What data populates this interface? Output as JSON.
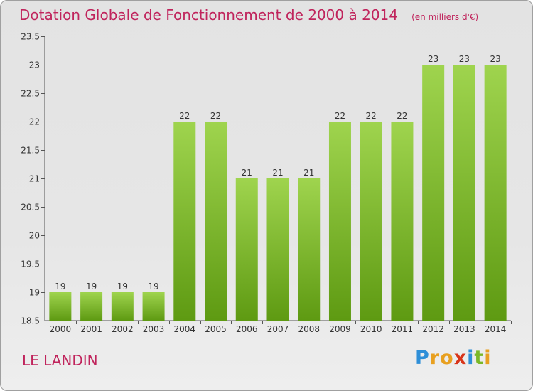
{
  "header": {
    "title": "Dotation Globale de Fonctionnement de 2000 à 2014",
    "unit": "(en milliers d'€)"
  },
  "footer": {
    "commune": "LE LANDIN",
    "brand": [
      "P",
      "r",
      "o",
      "x",
      "i",
      "t",
      "i"
    ],
    "brand_colors": [
      "#2e8fd8",
      "#e8a020",
      "#e8a020",
      "#d8351a",
      "#2e8fd8",
      "#7ab828",
      "#e8a020"
    ]
  },
  "chart_data": {
    "type": "bar",
    "title": "Dotation Globale de Fonctionnement de 2000 à 2014",
    "subtitle": "(en milliers d'€)",
    "categories": [
      "2000",
      "2001",
      "2002",
      "2003",
      "2004",
      "2005",
      "2006",
      "2007",
      "2008",
      "2009",
      "2010",
      "2011",
      "2012",
      "2013",
      "2014"
    ],
    "values": [
      19,
      19,
      19,
      19,
      22,
      22,
      21,
      21,
      21,
      22,
      22,
      22,
      23,
      23,
      23
    ],
    "data_labels": [
      "19",
      "19",
      "19",
      "19",
      "22",
      "22",
      "21",
      "21",
      "21",
      "22",
      "22",
      "22",
      "23",
      "23",
      "23"
    ],
    "ylim": [
      18.5,
      23.5
    ],
    "yticks": [
      18.5,
      19,
      19.5,
      20,
      20.5,
      21,
      21.5,
      22,
      22.5,
      23,
      23.5
    ],
    "ytick_labels": [
      "18.5",
      "19",
      "19.5",
      "20",
      "20.5",
      "21",
      "21.5",
      "22",
      "22.5",
      "23",
      "23.5"
    ],
    "grid": false,
    "bar_color_top": "#9fd44e",
    "bar_color_bottom": "#5e9a12",
    "xlabel": "",
    "ylabel": ""
  }
}
